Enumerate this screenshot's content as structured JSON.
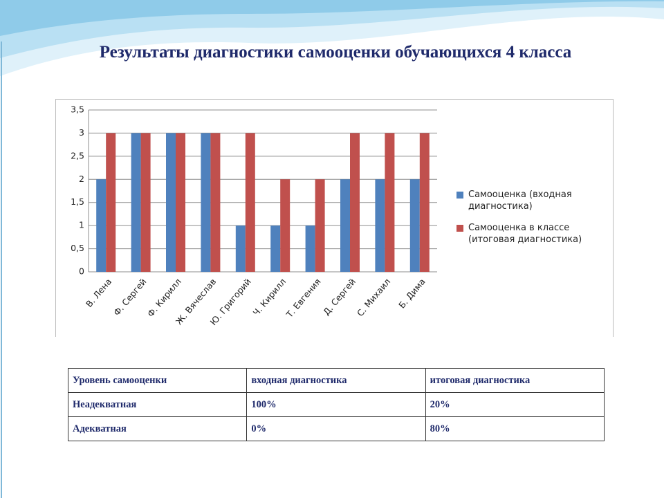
{
  "chart_data": {
    "type": "bar",
    "title": "Результаты диагностики самооценки обучающихся 4 класса",
    "categories": [
      "В. Лена",
      "Ф. Сергей",
      "Ф. Кирилл",
      "Ж. Вячеслав",
      "Ю. Григорий",
      "Ч. Кирилл",
      "Т. Евгения",
      "Д. Сергей",
      "С. Михаил",
      "Б. Дима"
    ],
    "series": [
      {
        "name": "Самооценка (входная диагностика)",
        "color": "#4f81bd",
        "values": [
          2,
          3,
          3,
          3,
          1,
          1,
          1,
          2,
          2,
          2
        ]
      },
      {
        "name": "Самооценка в классе (итоговая диагностика)",
        "color": "#c0504d",
        "values": [
          3,
          3,
          3,
          3,
          3,
          2,
          2,
          3,
          3,
          3
        ]
      }
    ],
    "ylim": [
      0,
      3.5
    ],
    "yticks": [
      0,
      {
        "value": 0.5,
        "label": "0,5"
      },
      1,
      {
        "value": 1.5,
        "label": "1,5"
      },
      2,
      {
        "value": 2.5,
        "label": "2,5"
      },
      3,
      {
        "value": 3.5,
        "label": "3,5"
      }
    ],
    "grid": true,
    "legend": "right"
  },
  "table": {
    "rows": [
      [
        "Уровень самооценки",
        "входная диагностика",
        "итоговая диагностика"
      ],
      [
        "Неадекватная",
        "100%",
        "20%"
      ],
      [
        "Адекватная",
        "0%",
        "80%"
      ]
    ]
  }
}
